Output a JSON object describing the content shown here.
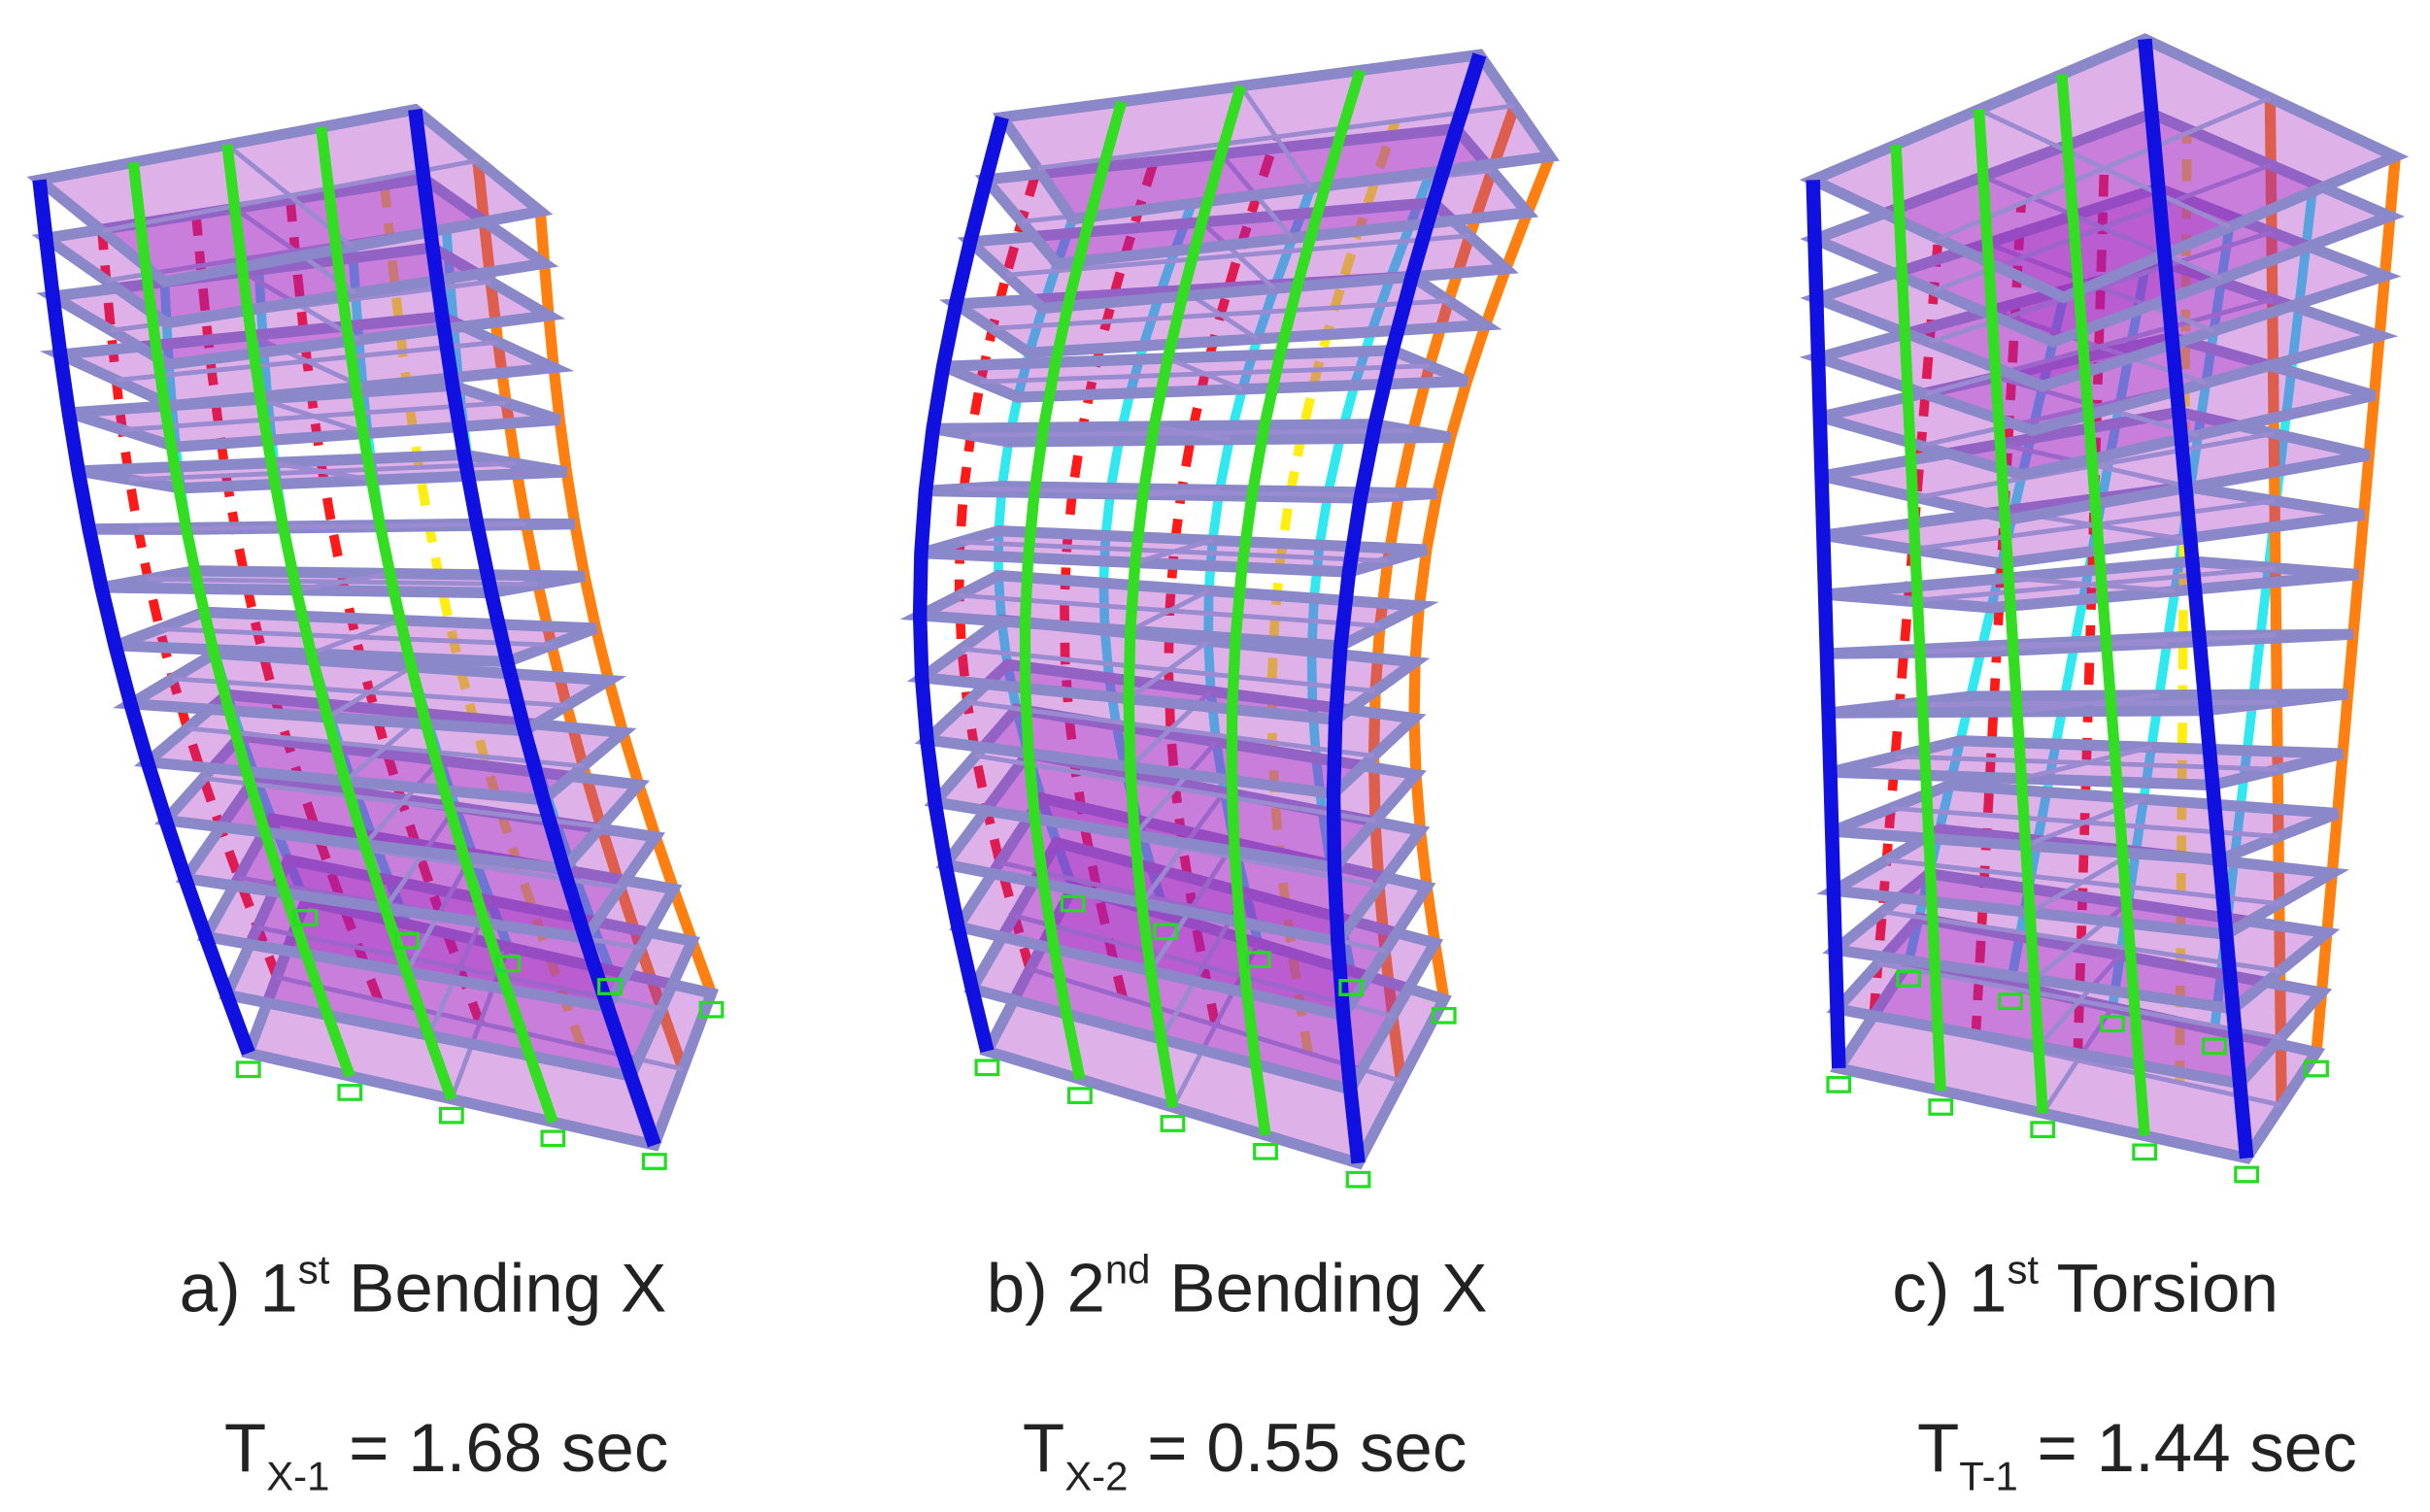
{
  "panels": [
    {
      "caption": {
        "prefix": "a) 1",
        "superscript": "st",
        "suffix": " Bending X"
      },
      "period": {
        "symbol": "T",
        "subscript": "X-1",
        "suffix": " = 1.68 sec"
      }
    },
    {
      "caption": {
        "prefix": "b) 2",
        "superscript": "nd",
        "suffix": " Bending X"
      },
      "period": {
        "symbol": "T",
        "subscript": "X-2",
        "suffix": " = 0.55 sec"
      }
    },
    {
      "caption": {
        "prefix": "c) 1",
        "superscript": "st",
        "suffix": " Torsion"
      },
      "period": {
        "symbol": "T",
        "subscript": "T-1",
        "suffix": " = 1.44 sec"
      }
    }
  ]
}
